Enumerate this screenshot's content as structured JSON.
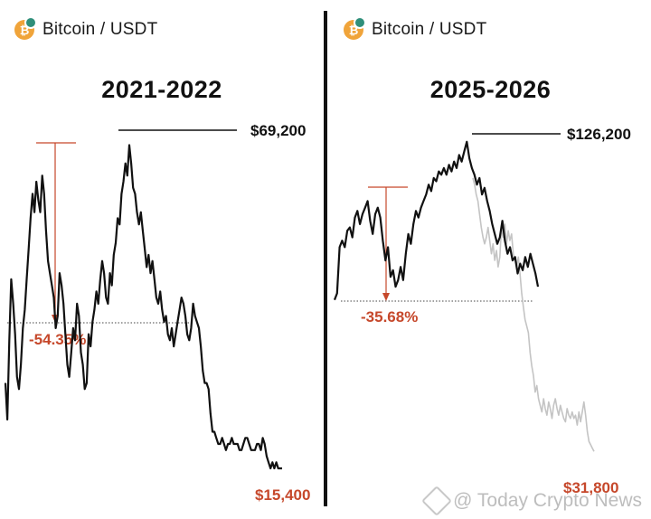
{
  "colors": {
    "line": "#111111",
    "faded": "#c4c4c4",
    "accent": "#c6482b",
    "coin": "#f0a43a",
    "badge": "#2f8f7a"
  },
  "icons": {
    "coin": "bitcoin-coin-icon",
    "watermark": "today-crypto-diamond-icon"
  },
  "watermark": "@ Today Crypto News",
  "chart_data": [
    {
      "type": "line",
      "pair": "Bitcoin / USDT",
      "title": "2021-2022",
      "coin_symbol": "₿",
      "peak_label": "$69,200",
      "drawdown_label": "-54.35%",
      "low_label": "$15,400",
      "peak_value": 69200,
      "low_value": 15400,
      "drawdown_pct": -54.35,
      "ylim": [
        12000,
        75000
      ],
      "series": [
        {
          "style": "solid",
          "values": [
            30,
            24,
            37,
            47,
            43,
            38,
            31,
            29,
            33,
            39,
            42,
            47,
            52,
            57,
            61,
            58,
            63,
            60,
            58,
            64,
            61,
            55,
            50,
            48,
            46,
            44,
            39,
            41,
            48,
            46,
            43,
            38,
            33,
            31,
            35,
            39,
            37,
            43,
            41,
            35,
            33,
            29,
            30,
            38,
            36,
            40,
            42,
            45,
            43,
            47,
            50,
            48,
            44,
            43,
            48,
            46,
            51,
            53,
            57,
            56,
            61,
            63,
            66,
            64,
            69,
            66,
            62,
            61,
            58,
            56,
            58,
            55,
            52,
            49,
            51,
            48,
            50,
            47,
            44,
            43,
            45,
            42,
            40,
            41,
            38,
            37,
            39,
            36,
            38,
            40,
            42,
            44,
            43,
            41,
            38,
            37,
            39,
            43,
            41,
            40,
            39,
            36,
            32,
            30,
            30,
            29,
            25,
            22,
            22,
            21,
            20,
            20,
            21,
            20,
            19,
            20,
            20,
            21,
            20,
            20,
            20,
            19,
            19,
            20,
            21,
            21,
            20,
            19,
            19,
            19,
            20,
            20,
            19,
            21,
            20,
            18,
            17,
            16,
            17,
            16,
            17,
            16,
            16,
            16
          ]
        }
      ]
    },
    {
      "type": "line",
      "pair": "Bitcoin / USDT",
      "title": "2025-2026",
      "coin_symbol": "₿",
      "peak_label": "$126,200",
      "drawdown_label": "-35.68%",
      "low_label": "$31,800",
      "peak_value": 126200,
      "low_value": 31800,
      "drawdown_pct": -35.68,
      "ylim": [
        20000,
        135000
      ],
      "series": [
        {
          "style": "solid",
          "values": [
            78,
            80,
            94,
            96,
            94,
            99,
            100,
            97,
            103,
            105,
            101,
            104,
            106,
            108,
            102,
            98,
            104,
            106,
            103,
            96,
            90,
            94,
            85,
            87,
            82,
            84,
            88,
            84,
            92,
            98,
            95,
            101,
            105,
            103,
            106,
            108,
            110,
            113,
            111,
            115,
            114,
            117,
            116,
            118,
            116,
            119,
            117,
            120,
            118,
            122,
            120,
            123,
            126,
            121,
            118,
            116,
            113,
            115,
            110,
            112,
            108,
            105,
            101,
            98,
            95,
            97,
            102,
            96,
            92,
            94,
            90,
            91,
            86,
            89,
            87,
            91,
            88,
            92,
            89,
            86,
            82
          ]
        },
        {
          "style": "faded",
          "values": [
            115,
            113,
            110,
            108,
            104,
            100,
            97,
            95,
            97,
            100,
            96,
            92,
            95,
            90,
            93,
            88,
            91,
            100,
            97,
            101,
            95,
            99,
            96,
            98,
            92,
            90,
            88,
            91,
            86,
            80,
            76,
            72,
            70,
            68,
            62,
            58,
            55,
            50,
            52,
            48,
            46,
            44,
            48,
            45,
            43,
            47,
            45,
            42,
            46,
            48,
            45,
            43,
            46,
            44,
            42,
            41,
            45,
            43,
            42,
            44,
            42,
            43,
            40,
            44,
            41,
            44,
            47,
            43,
            38,
            35,
            34,
            33,
            32
          ]
        }
      ]
    }
  ]
}
